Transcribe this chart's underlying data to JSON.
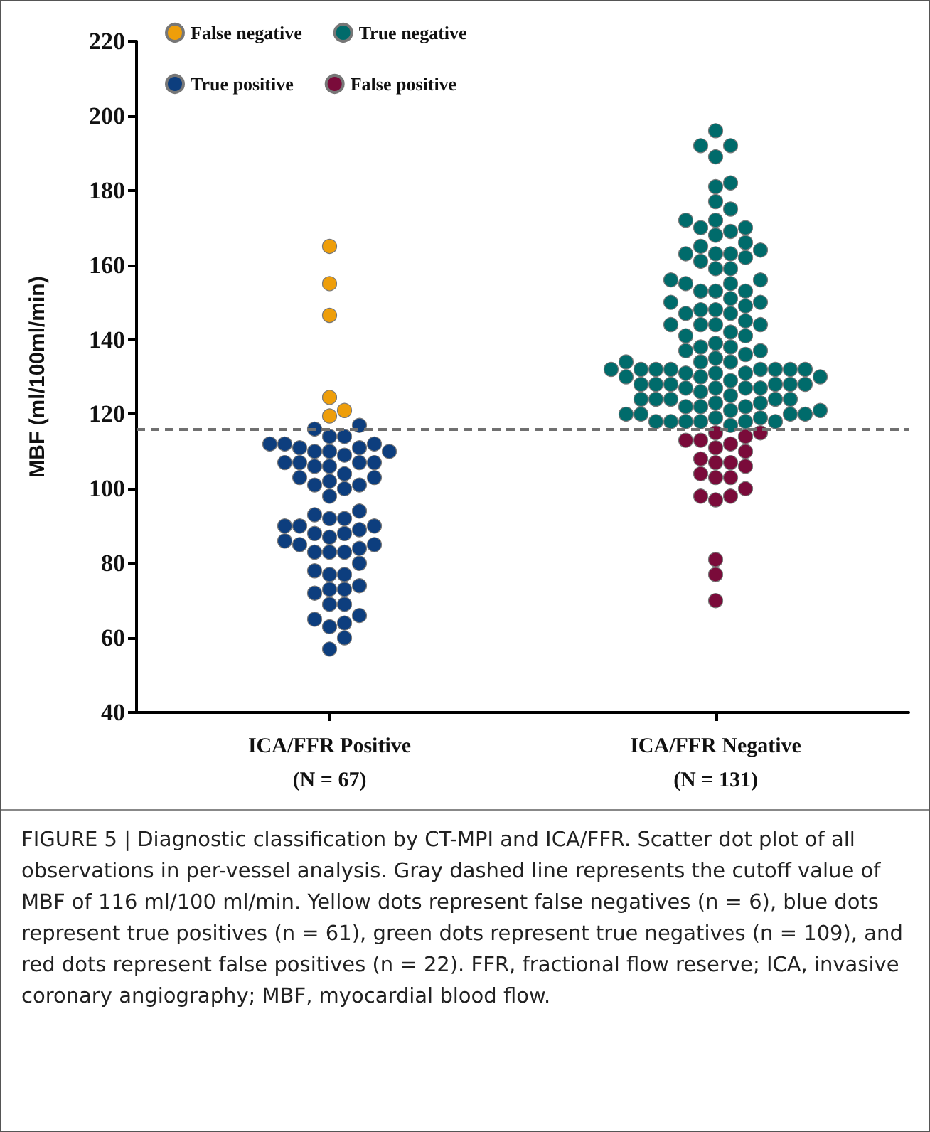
{
  "chart_data": {
    "type": "scatter",
    "ylabel": "MBF (ml/100ml/min)",
    "categories": [
      "ICA/FFR Positive\n(N = 67)",
      "ICA/FFR Negative\n(N = 131)"
    ],
    "ylim": [
      40,
      220
    ],
    "yticks": [
      40,
      60,
      80,
      100,
      120,
      140,
      160,
      180,
      200,
      220
    ],
    "grid": false,
    "legend": "top left",
    "marker": "circle",
    "ref_lines": [
      {
        "axis": "y",
        "value": 116,
        "color": "#707070",
        "line_style": "dashed"
      }
    ],
    "annotations": [
      "FIGURE 5 | Diagnostic classification by CT-MPI and ICA/FFR. Scatter dot plot of all observations in per-vessel analysis. Gray dashed line represents the cutoff value of MBF of 116 ml/100 ml/min. Yellow dots represent false negatives (n = 6), blue dots represent true positives (n = 61), green dots represent true negatives (n = 109), and red dots represent false positives (n = 22). FFR, fractional flow reserve; ICA, invasive coronary angiography; MBF, myocardial blood flow."
    ],
    "series": [
      {
        "name": "False negative",
        "color": "#ee9e0a",
        "x": [
          "ICA/FFR Positive\n(N = 67)",
          "ICA/FFR Positive\n(N = 67)",
          "ICA/FFR Positive\n(N = 67)",
          "ICA/FFR Positive\n(N = 67)",
          "ICA/FFR Positive\n(N = 67)",
          "ICA/FFR Positive\n(N = 67)"
        ],
        "values": [
          165,
          155,
          146.5,
          124.5,
          121,
          119.5
        ]
      },
      {
        "name": "True negative",
        "color": "#006b6b",
        "x": [
          "ICA/FFR Negative\n(N = 131)",
          "ICA/FFR Negative\n(N = 131)",
          "ICA/FFR Negative\n(N = 131)",
          "ICA/FFR Negative\n(N = 131)",
          "ICA/FFR Negative\n(N = 131)",
          "ICA/FFR Negative\n(N = 131)",
          "ICA/FFR Negative\n(N = 131)",
          "ICA/FFR Negative\n(N = 131)",
          "ICA/FFR Negative\n(N = 131)",
          "ICA/FFR Negative\n(N = 131)",
          "ICA/FFR Negative\n(N = 131)",
          "ICA/FFR Negative\n(N = 131)",
          "ICA/FFR Negative\n(N = 131)",
          "ICA/FFR Negative\n(N = 131)",
          "ICA/FFR Negative\n(N = 131)",
          "ICA/FFR Negative\n(N = 131)",
          "ICA/FFR Negative\n(N = 131)",
          "ICA/FFR Negative\n(N = 131)",
          "ICA/FFR Negative\n(N = 131)",
          "ICA/FFR Negative\n(N = 131)",
          "ICA/FFR Negative\n(N = 131)",
          "ICA/FFR Negative\n(N = 131)",
          "ICA/FFR Negative\n(N = 131)",
          "ICA/FFR Negative\n(N = 131)",
          "ICA/FFR Negative\n(N = 131)",
          "ICA/FFR Negative\n(N = 131)",
          "ICA/FFR Negative\n(N = 131)",
          "ICA/FFR Negative\n(N = 131)",
          "ICA/FFR Negative\n(N = 131)",
          "ICA/FFR Negative\n(N = 131)",
          "ICA/FFR Negative\n(N = 131)",
          "ICA/FFR Negative\n(N = 131)",
          "ICA/FFR Negative\n(N = 131)",
          "ICA/FFR Negative\n(N = 131)",
          "ICA/FFR Negative\n(N = 131)",
          "ICA/FFR Negative\n(N = 131)",
          "ICA/FFR Negative\n(N = 131)",
          "ICA/FFR Negative\n(N = 131)",
          "ICA/FFR Negative\n(N = 131)",
          "ICA/FFR Negative\n(N = 131)",
          "ICA/FFR Negative\n(N = 131)",
          "ICA/FFR Negative\n(N = 131)",
          "ICA/FFR Negative\n(N = 131)",
          "ICA/FFR Negative\n(N = 131)",
          "ICA/FFR Negative\n(N = 131)",
          "ICA/FFR Negative\n(N = 131)",
          "ICA/FFR Negative\n(N = 131)",
          "ICA/FFR Negative\n(N = 131)",
          "ICA/FFR Negative\n(N = 131)",
          "ICA/FFR Negative\n(N = 131)",
          "ICA/FFR Negative\n(N = 131)",
          "ICA/FFR Negative\n(N = 131)",
          "ICA/FFR Negative\n(N = 131)",
          "ICA/FFR Negative\n(N = 131)",
          "ICA/FFR Negative\n(N = 131)",
          "ICA/FFR Negative\n(N = 131)",
          "ICA/FFR Negative\n(N = 131)",
          "ICA/FFR Negative\n(N = 131)",
          "ICA/FFR Negative\n(N = 131)",
          "ICA/FFR Negative\n(N = 131)",
          "ICA/FFR Negative\n(N = 131)",
          "ICA/FFR Negative\n(N = 131)",
          "ICA/FFR Negative\n(N = 131)",
          "ICA/FFR Negative\n(N = 131)",
          "ICA/FFR Negative\n(N = 131)",
          "ICA/FFR Negative\n(N = 131)",
          "ICA/FFR Negative\n(N = 131)",
          "ICA/FFR Negative\n(N = 131)",
          "ICA/FFR Negative\n(N = 131)",
          "ICA/FFR Negative\n(N = 131)",
          "ICA/FFR Negative\n(N = 131)",
          "ICA/FFR Negative\n(N = 131)",
          "ICA/FFR Negative\n(N = 131)",
          "ICA/FFR Negative\n(N = 131)",
          "ICA/FFR Negative\n(N = 131)",
          "ICA/FFR Negative\n(N = 131)",
          "ICA/FFR Negative\n(N = 131)",
          "ICA/FFR Negative\n(N = 131)",
          "ICA/FFR Negative\n(N = 131)",
          "ICA/FFR Negative\n(N = 131)",
          "ICA/FFR Negative\n(N = 131)",
          "ICA/FFR Negative\n(N = 131)",
          "ICA/FFR Negative\n(N = 131)",
          "ICA/FFR Negative\n(N = 131)",
          "ICA/FFR Negative\n(N = 131)",
          "ICA/FFR Negative\n(N = 131)",
          "ICA/FFR Negative\n(N = 131)",
          "ICA/FFR Negative\n(N = 131)",
          "ICA/FFR Negative\n(N = 131)",
          "ICA/FFR Negative\n(N = 131)",
          "ICA/FFR Negative\n(N = 131)",
          "ICA/FFR Negative\n(N = 131)",
          "ICA/FFR Negative\n(N = 131)",
          "ICA/FFR Negative\n(N = 131)",
          "ICA/FFR Negative\n(N = 131)",
          "ICA/FFR Negative\n(N = 131)",
          "ICA/FFR Negative\n(N = 131)",
          "ICA/FFR Negative\n(N = 131)",
          "ICA/FFR Negative\n(N = 131)",
          "ICA/FFR Negative\n(N = 131)",
          "ICA/FFR Negative\n(N = 131)",
          "ICA/FFR Negative\n(N = 131)",
          "ICA/FFR Negative\n(N = 131)",
          "ICA/FFR Negative\n(N = 131)",
          "ICA/FFR Negative\n(N = 131)",
          "ICA/FFR Negative\n(N = 131)",
          "ICA/FFR Negative\n(N = 131)",
          "ICA/FFR Negative\n(N = 131)",
          "ICA/FFR Negative\n(N = 131)"
        ],
        "values": [
          196,
          192,
          192,
          189,
          182,
          181,
          177,
          175,
          172,
          172,
          170,
          169,
          168,
          170,
          166,
          165,
          164,
          163,
          162,
          163,
          163,
          161,
          159,
          159,
          155,
          156,
          155,
          156,
          153,
          153,
          153,
          151,
          150,
          150,
          149,
          148,
          147,
          147,
          148,
          144,
          145,
          144,
          144,
          144,
          141,
          142,
          141,
          139,
          138,
          138,
          137,
          137,
          136,
          135,
          134,
          134,
          134,
          132,
          131,
          132,
          132,
          132,
          132,
          132,
          132,
          132,
          131,
          130,
          130,
          131,
          130,
          127,
          128,
          128,
          129,
          128,
          128,
          128,
          127,
          128,
          127,
          127,
          126,
          125,
          124,
          124,
          124,
          123,
          124,
          124,
          122,
          123,
          122,
          121,
          121,
          122,
          120,
          120,
          120,
          120,
          119,
          118,
          118,
          117,
          118,
          118,
          118,
          118,
          119
        ]
      },
      {
        "name": "True positive",
        "color": "#0d3e7e",
        "x": [
          "ICA/FFR Positive\n(N = 67)",
          "ICA/FFR Positive\n(N = 67)",
          "ICA/FFR Positive\n(N = 67)",
          "ICA/FFR Positive\n(N = 67)",
          "ICA/FFR Positive\n(N = 67)",
          "ICA/FFR Positive\n(N = 67)",
          "ICA/FFR Positive\n(N = 67)",
          "ICA/FFR Positive\n(N = 67)",
          "ICA/FFR Positive\n(N = 67)",
          "ICA/FFR Positive\n(N = 67)",
          "ICA/FFR Positive\n(N = 67)",
          "ICA/FFR Positive\n(N = 67)",
          "ICA/FFR Positive\n(N = 67)",
          "ICA/FFR Positive\n(N = 67)",
          "ICA/FFR Positive\n(N = 67)",
          "ICA/FFR Positive\n(N = 67)",
          "ICA/FFR Positive\n(N = 67)",
          "ICA/FFR Positive\n(N = 67)",
          "ICA/FFR Positive\n(N = 67)",
          "ICA/FFR Positive\n(N = 67)",
          "ICA/FFR Positive\n(N = 67)",
          "ICA/FFR Positive\n(N = 67)",
          "ICA/FFR Positive\n(N = 67)",
          "ICA/FFR Positive\n(N = 67)",
          "ICA/FFR Positive\n(N = 67)",
          "ICA/FFR Positive\n(N = 67)",
          "ICA/FFR Positive\n(N = 67)",
          "ICA/FFR Positive\n(N = 67)",
          "ICA/FFR Positive\n(N = 67)",
          "ICA/FFR Positive\n(N = 67)",
          "ICA/FFR Positive\n(N = 67)",
          "ICA/FFR Positive\n(N = 67)",
          "ICA/FFR Positive\n(N = 67)",
          "ICA/FFR Positive\n(N = 67)",
          "ICA/FFR Positive\n(N = 67)",
          "ICA/FFR Positive\n(N = 67)",
          "ICA/FFR Positive\n(N = 67)",
          "ICA/FFR Positive\n(N = 67)",
          "ICA/FFR Positive\n(N = 67)",
          "ICA/FFR Positive\n(N = 67)",
          "ICA/FFR Positive\n(N = 67)",
          "ICA/FFR Positive\n(N = 67)",
          "ICA/FFR Positive\n(N = 67)",
          "ICA/FFR Positive\n(N = 67)",
          "ICA/FFR Positive\n(N = 67)",
          "ICA/FFR Positive\n(N = 67)",
          "ICA/FFR Positive\n(N = 67)",
          "ICA/FFR Positive\n(N = 67)",
          "ICA/FFR Positive\n(N = 67)",
          "ICA/FFR Positive\n(N = 67)",
          "ICA/FFR Positive\n(N = 67)",
          "ICA/FFR Positive\n(N = 67)",
          "ICA/FFR Positive\n(N = 67)",
          "ICA/FFR Positive\n(N = 67)",
          "ICA/FFR Positive\n(N = 67)",
          "ICA/FFR Positive\n(N = 67)",
          "ICA/FFR Positive\n(N = 67)",
          "ICA/FFR Positive\n(N = 67)",
          "ICA/FFR Positive\n(N = 67)",
          "ICA/FFR Positive\n(N = 67)",
          "ICA/FFR Positive\n(N = 67)"
        ],
        "values": [
          116,
          117,
          114,
          114,
          112,
          112,
          112,
          111,
          110,
          111,
          110,
          110,
          109,
          106,
          107,
          106,
          107,
          104,
          107,
          107,
          101,
          101,
          103,
          103,
          102,
          98,
          100,
          93,
          94,
          92,
          92,
          88,
          89,
          90,
          88,
          87,
          90,
          86,
          90,
          85,
          85,
          83,
          83,
          84,
          83,
          80,
          77,
          78,
          77,
          74,
          73,
          72,
          73,
          69,
          69,
          65,
          64,
          66,
          63,
          60,
          57
        ]
      },
      {
        "name": "False positive",
        "color": "#7a0b3a",
        "x": [
          "ICA/FFR Negative\n(N = 131)",
          "ICA/FFR Negative\n(N = 131)",
          "ICA/FFR Negative\n(N = 131)",
          "ICA/FFR Negative\n(N = 131)",
          "ICA/FFR Negative\n(N = 131)",
          "ICA/FFR Negative\n(N = 131)",
          "ICA/FFR Negative\n(N = 131)",
          "ICA/FFR Negative\n(N = 131)",
          "ICA/FFR Negative\n(N = 131)",
          "ICA/FFR Negative\n(N = 131)",
          "ICA/FFR Negative\n(N = 131)",
          "ICA/FFR Negative\n(N = 131)",
          "ICA/FFR Negative\n(N = 131)",
          "ICA/FFR Negative\n(N = 131)",
          "ICA/FFR Negative\n(N = 131)",
          "ICA/FFR Negative\n(N = 131)",
          "ICA/FFR Negative\n(N = 131)",
          "ICA/FFR Negative\n(N = 131)",
          "ICA/FFR Negative\n(N = 131)",
          "ICA/FFR Negative\n(N = 131)",
          "ICA/FFR Negative\n(N = 131)",
          "ICA/FFR Negative\n(N = 131)"
        ],
        "values": [
          114,
          115,
          115,
          113,
          113,
          112,
          111,
          110,
          108,
          107,
          106,
          107,
          104,
          103,
          103,
          100,
          98,
          98,
          97,
          81,
          77,
          70
        ]
      }
    ]
  }
}
